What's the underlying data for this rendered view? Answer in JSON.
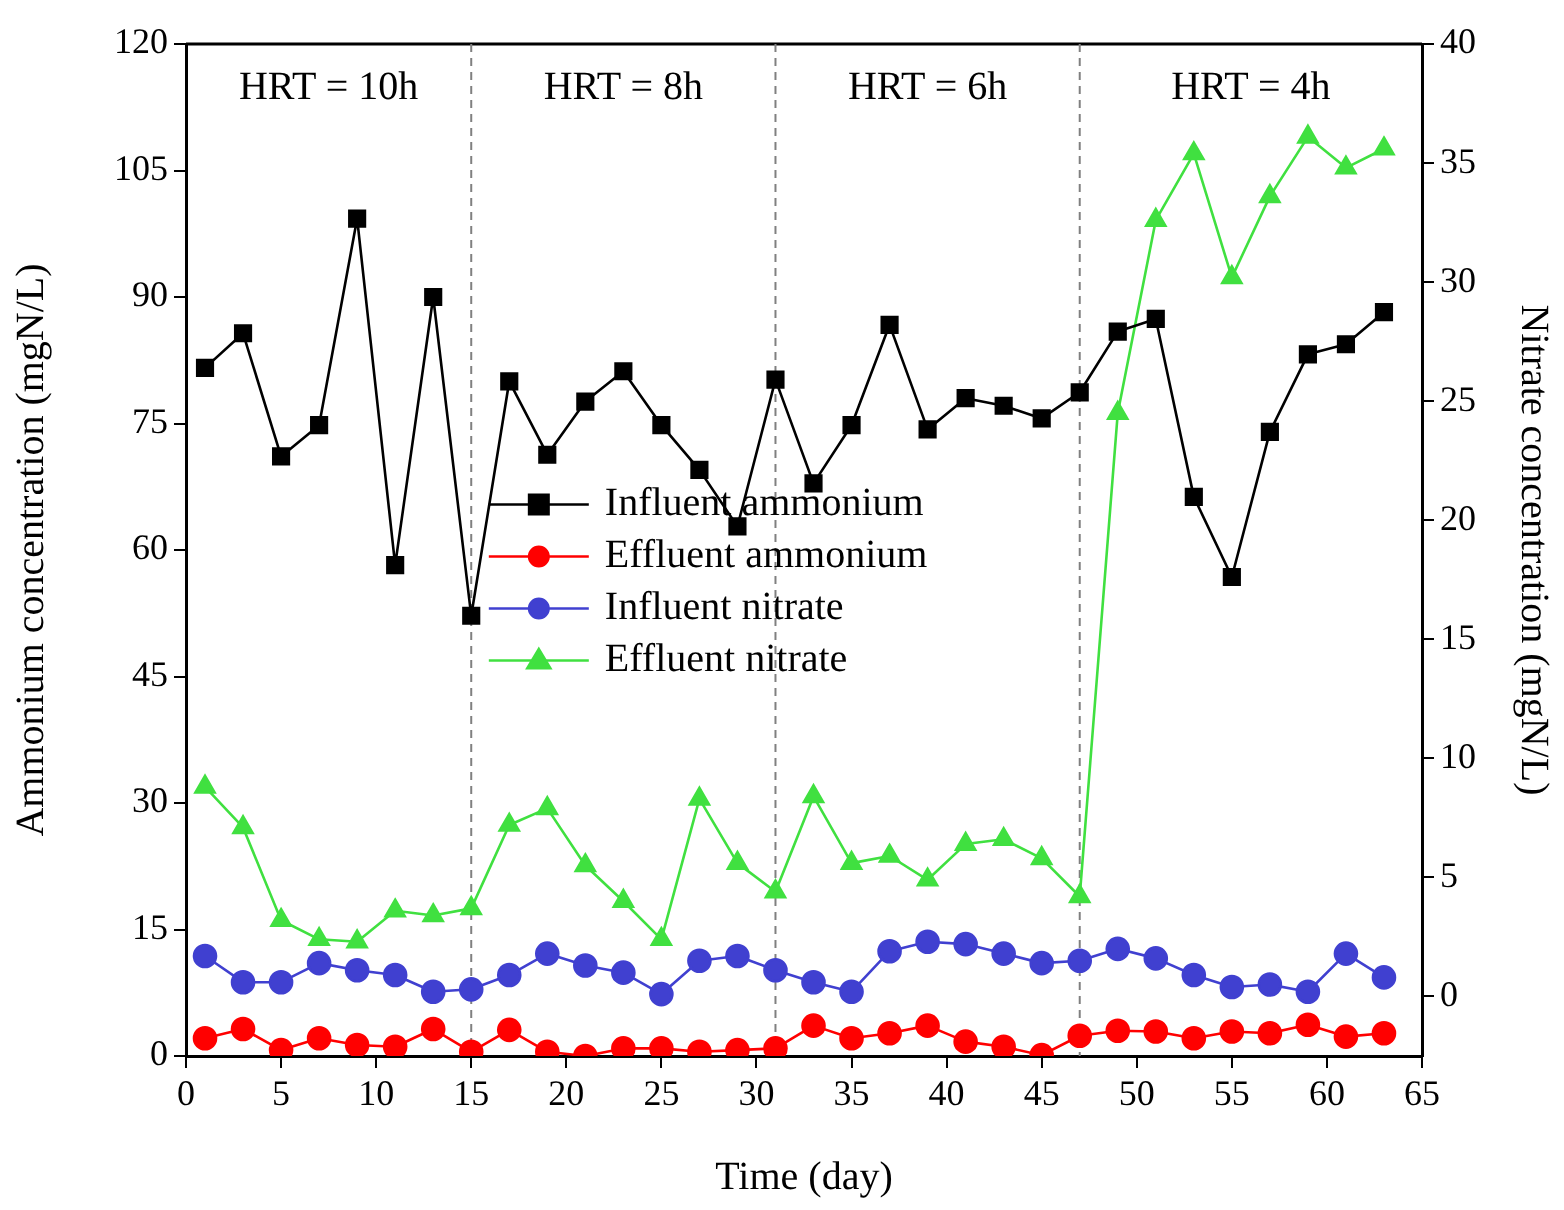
{
  "chart_data": {
    "type": "line",
    "xlabel": "Time (day)",
    "ylabel": "Ammonium concentration (mgN/L)",
    "y2label": "Nitrate concentration (mgN/L)",
    "x": [
      1,
      3,
      5,
      7,
      9,
      11,
      13,
      15,
      17,
      19,
      21,
      23,
      25,
      27,
      29,
      31,
      33,
      35,
      37,
      39,
      41,
      43,
      45,
      47,
      49,
      51,
      53,
      55,
      57,
      59,
      61,
      63
    ],
    "xlim": [
      0,
      65
    ],
    "xticks": [
      0,
      5,
      10,
      15,
      20,
      25,
      30,
      35,
      40,
      45,
      50,
      55,
      60,
      65
    ],
    "ylim": [
      0,
      120
    ],
    "yticks": [
      0,
      15,
      30,
      45,
      60,
      75,
      90,
      105,
      120
    ],
    "y2lim": [
      -2.5,
      40
    ],
    "y2ticks": [
      0,
      5,
      10,
      15,
      20,
      25,
      30,
      35,
      40
    ],
    "grid": false,
    "legend": "center",
    "line_style": "solid",
    "series": [
      {
        "name": "Influent ammonium",
        "color": "#000000",
        "marker": "square",
        "values": [
          81.6,
          85.7,
          71.1,
          74.8,
          99.3,
          58.2,
          90.0,
          52.2,
          80.0,
          71.3,
          77.6,
          81.2,
          74.8,
          69.5,
          62.8,
          80.2,
          67.9,
          74.8,
          86.7,
          74.3,
          78.0,
          77.1,
          75.6,
          78.7,
          85.9,
          87.4,
          66.3,
          56.8,
          74.0,
          83.2,
          84.4,
          88.2
        ]
      },
      {
        "name": "Effluent ammonium",
        "color": "#ff0000",
        "marker": "circle",
        "values": [
          2.1,
          3.2,
          0.7,
          2.1,
          1.3,
          1.1,
          3.2,
          0.5,
          3.1,
          0.5,
          0.0,
          0.9,
          0.9,
          0.5,
          0.7,
          0.9,
          3.6,
          2.1,
          2.7,
          3.6,
          1.7,
          1.1,
          0.1,
          2.4,
          3.0,
          2.9,
          2.1,
          2.9,
          2.7,
          3.7,
          2.3,
          2.7
        ]
      },
      {
        "name": "Influent nitrate",
        "color": "#4040d0",
        "marker": "circle",
        "axis": "y2",
        "values": [
          1.7,
          0.6,
          0.6,
          1.4,
          1.1,
          0.9,
          0.2,
          0.3,
          0.9,
          1.8,
          1.3,
          1.0,
          0.1,
          1.5,
          1.7,
          1.1,
          0.6,
          0.2,
          1.9,
          2.3,
          2.2,
          1.8,
          1.4,
          1.5,
          2.0,
          1.6,
          0.9,
          0.4,
          0.5,
          0.2,
          1.8,
          0.8
        ]
      },
      {
        "name": "Effluent nitrate",
        "color": "#40e040",
        "marker": "triangle",
        "axis": "y2",
        "values": [
          8.8,
          7.1,
          3.2,
          2.4,
          2.3,
          3.6,
          3.4,
          3.7,
          7.2,
          7.9,
          5.5,
          4.0,
          2.4,
          8.3,
          5.6,
          4.4,
          8.4,
          5.6,
          5.9,
          4.9,
          6.4,
          6.6,
          5.8,
          4.2,
          24.5,
          32.6,
          35.4,
          30.2,
          33.6,
          36.1,
          34.8,
          35.6
        ]
      }
    ],
    "ref_lines": [
      {
        "axis": "x",
        "value": 15,
        "color": "#808080",
        "line_style": "dashed"
      },
      {
        "axis": "x",
        "value": 31,
        "color": "#808080",
        "line_style": "dashed"
      },
      {
        "axis": "x",
        "value": 47,
        "color": "#808080",
        "line_style": "dashed"
      }
    ],
    "annotations": [
      "HRT = 10h",
      "HRT = 8h",
      "HRT = 6h",
      "HRT = 4h"
    ]
  }
}
